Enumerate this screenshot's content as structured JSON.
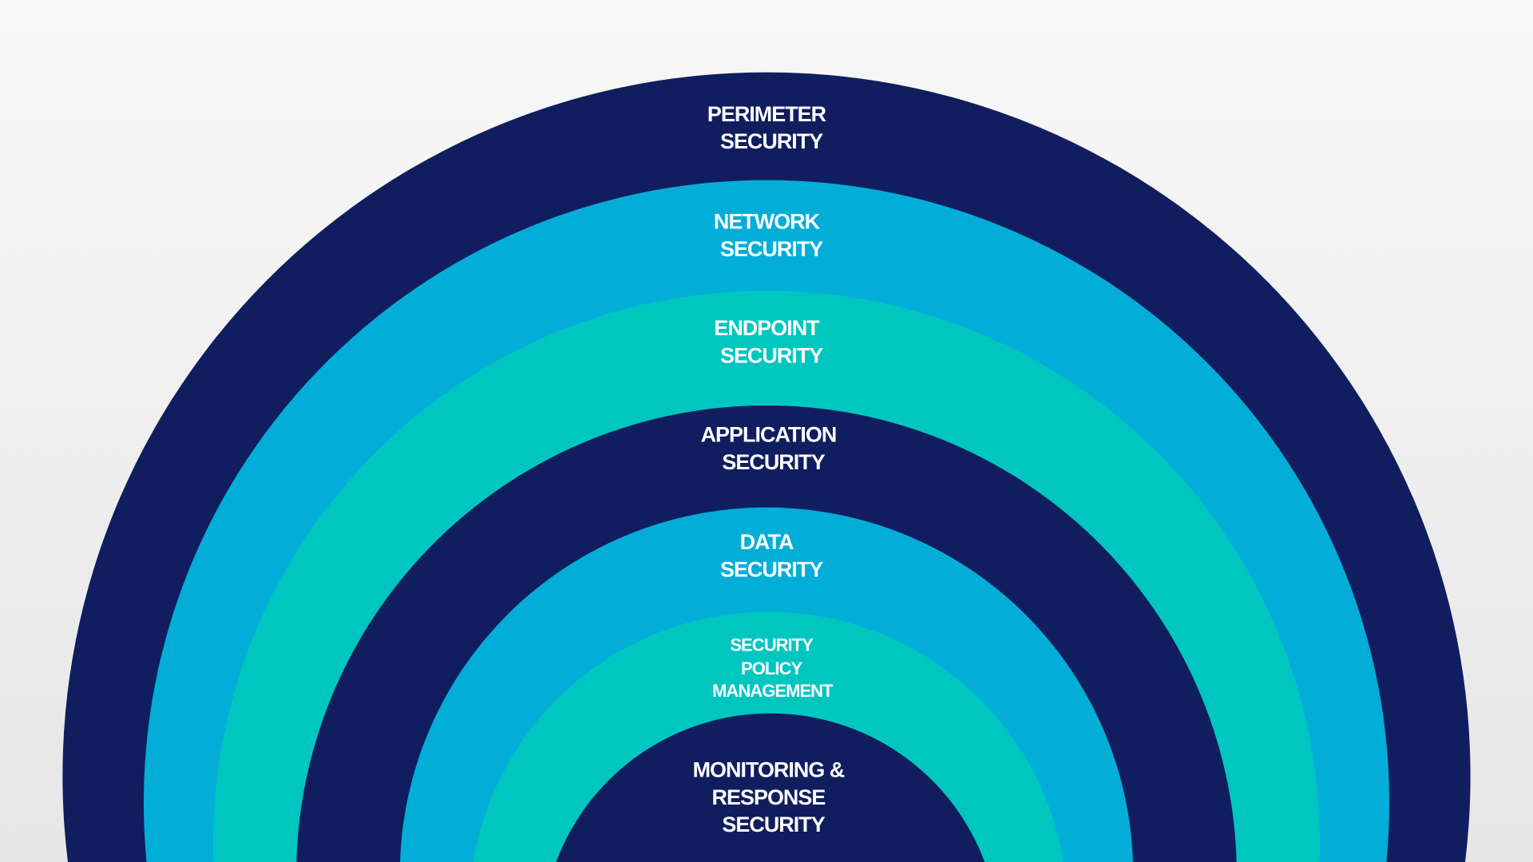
{
  "colors": {
    "navy": "#101e5f",
    "blue": "#02aed8",
    "teal": "#00c6c0",
    "text": "#ffffff"
  },
  "layers": [
    {
      "lines": [
        "PERIMETER",
        "SECURITY"
      ],
      "color": "#101e5f"
    },
    {
      "lines": [
        "NETWORK",
        "SECURITY"
      ],
      "color": "#02aed8"
    },
    {
      "lines": [
        "ENDPOINT",
        "SECURITY"
      ],
      "color": "#00c6c0"
    },
    {
      "lines": [
        "APPLICATION",
        "SECURITY"
      ],
      "color": "#101e5f"
    },
    {
      "lines": [
        "DATA",
        "SECURITY"
      ],
      "color": "#02aed8"
    },
    {
      "lines": [
        "SECURITY",
        "POLICY",
        "MANAGEMENT"
      ],
      "color": "#00c6c0"
    },
    {
      "lines": [
        "MONITORING &",
        "RESPONSE",
        "SECURITY"
      ],
      "color": "#101e5f"
    }
  ]
}
